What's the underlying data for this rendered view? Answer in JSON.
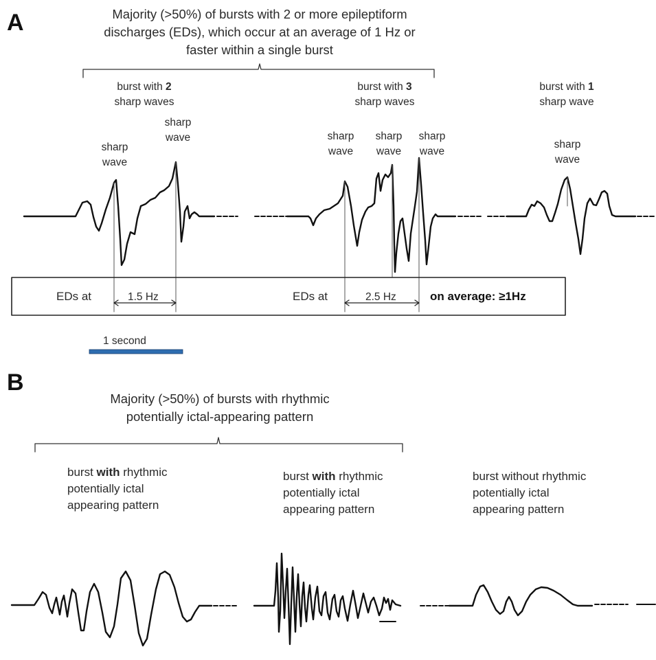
{
  "panel_a": {
    "letter": "A",
    "heading": "Majority (>50%) of bursts with 2 or more epileptiform discharges (EDs), which occur at an average of 1 Hz or faster within a single burst",
    "burst1": {
      "pre": "burst with ",
      "num": "2",
      "post": "sharp waves"
    },
    "burst2": {
      "pre": "burst with ",
      "num": "3",
      "post": "sharp waves"
    },
    "burst3": {
      "pre": "burst with ",
      "num": "1",
      "post": "sharp wave"
    },
    "sharp_wave_label": "sharp wave",
    "eds_at": "EDs at",
    "freq1": "1.5 Hz",
    "freq2": "2.5 Hz",
    "average": "on average: ≥1Hz",
    "scale_label": "1 second",
    "scale_color": "#2e6db0"
  },
  "panel_b": {
    "letter": "B",
    "heading": "Majority (>50%) of bursts with rhythmic potentially ictal-appearing pattern",
    "burst1": {
      "pre": "burst ",
      "bold": "with",
      "post": "rhythmic potentially ictal appearing pattern"
    },
    "burst2": {
      "pre": "burst ",
      "bold": "with",
      "post": "rhythmic potentially ictal appearing pattern"
    },
    "burst3": {
      "text": "burst without rhythmic potentially ictal appearing pattern"
    }
  }
}
